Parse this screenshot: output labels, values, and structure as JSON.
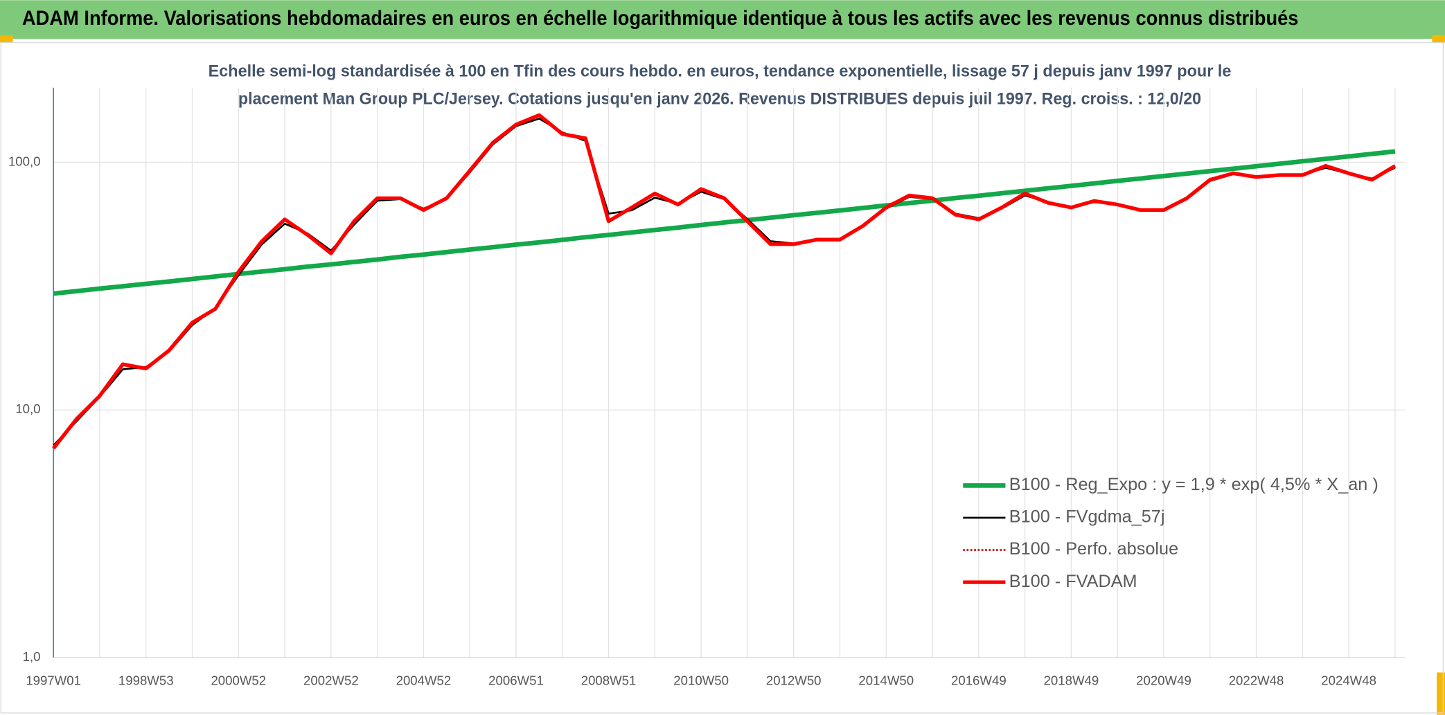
{
  "header": {
    "title": "ADAM Informe. Valorisations hebdomadaires en euros en échelle logarithmique identique à tous les actifs avec les revenus connus distribués"
  },
  "chart_data": {
    "type": "line",
    "title_lines": [
      "Echelle semi-log standardisée à 100 en Tfin des cours hebdo. en euros, tendance exponentielle, lissage 57 j depuis janv 1997 pour le",
      "placement Man Group PLC/Jersey. Cotations jusqu'en janv 2026. Revenus DISTRIBUES depuis juil 1997. Reg. croiss. : 12,0/20"
    ],
    "categories": [
      "1997W01",
      null,
      null,
      null,
      "1998W53",
      null,
      null,
      null,
      "2000W52",
      null,
      null,
      null,
      "2002W52",
      null,
      null,
      null,
      "2004W52",
      null,
      null,
      null,
      "2006W51",
      null,
      null,
      null,
      "2008W51",
      null,
      null,
      null,
      "2010W50",
      null,
      null,
      null,
      "2012W50",
      null,
      null,
      null,
      "2014W50",
      null,
      null,
      null,
      "2016W49",
      null,
      null,
      null,
      "2018W49",
      null,
      null,
      null,
      "2020W49",
      null,
      null,
      null,
      "2022W48",
      null,
      null,
      null,
      "2024W48",
      null,
      null
    ],
    "ylim": [
      1,
      200
    ],
    "log_scale": true,
    "yticks": [
      {
        "value": 1,
        "label": "1,0"
      },
      {
        "value": 10,
        "label": "10,0"
      },
      {
        "value": 100,
        "label": "100,0"
      }
    ],
    "grid": true,
    "legend": "lower right",
    "series": [
      {
        "name": "B100 - Reg_Expo : y = 1,9 * exp( 4,5% *  X_an )",
        "color": "#13a84a",
        "style": "solid",
        "width": 5,
        "values": [
          29.5,
          30.2,
          30.9,
          31.6,
          32.3,
          33.0,
          33.8,
          34.6,
          35.4,
          36.2,
          37.0,
          37.9,
          38.7,
          39.6,
          40.5,
          41.5,
          42.4,
          43.4,
          44.4,
          45.4,
          46.5,
          47.5,
          48.6,
          49.8,
          50.9,
          52.1,
          53.3,
          54.5,
          55.8,
          57.1,
          58.4,
          59.7,
          61.1,
          62.5,
          63.9,
          65.4,
          66.9,
          68.5,
          70.0,
          71.7,
          73.3,
          75.0,
          76.7,
          78.5,
          80.3,
          82.2,
          84.1,
          86.0,
          88.0,
          90.0,
          92.1,
          94.2,
          96.4,
          98.6,
          100.9,
          103.2,
          105.6,
          108.1,
          110.6
        ]
      },
      {
        "name": "B100 - FVgdma_57j",
        "color": "#000000",
        "style": "solid",
        "width": 2,
        "values": [
          7.2,
          9.0,
          11.3,
          14.6,
          14.9,
          17.2,
          22.0,
          25.8,
          35.0,
          46.5,
          56.5,
          51.5,
          44.0,
          56.0,
          70.0,
          71.0,
          65.0,
          71.0,
          91.0,
          118,
          140,
          150,
          132,
          122,
          62.0,
          64.0,
          72.0,
          68.0,
          76.0,
          71.0,
          59.0,
          48.0,
          47.0,
          48.5,
          49.0,
          55.0,
          65.0,
          72.5,
          71.0,
          62.0,
          59.5,
          65.0,
          73.5,
          69.0,
          66.0,
          69.0,
          67.5,
          64.5,
          64.5,
          71.0,
          84.0,
          89.5,
          87.5,
          88.5,
          89.0,
          95.0,
          90.0,
          86.0,
          95.0
        ]
      },
      {
        "name": "B100 - Perfo. absolue",
        "color": "#c00000",
        "style": "dotted",
        "width": 2,
        "values": [
          7.0,
          9.2,
          11.4,
          15.3,
          14.7,
          17.4,
          22.5,
          25.6,
          36.1,
          47.9,
          58.8,
          50.8,
          42.9,
          57.8,
          71.6,
          71.6,
          64.1,
          71.6,
          92.6,
          120,
          142,
          155,
          130,
          125,
          57.8,
          65.7,
          74.8,
          67.5,
          78.0,
          71.6,
          57.8,
          46.7,
          46.7,
          48.7,
          48.7,
          55.4,
          65.7,
          73.5,
          71.6,
          61.4,
          58.8,
          65.7,
          74.8,
          68.6,
          65.7,
          69.8,
          67.5,
          64.1,
          64.1,
          71.6,
          85.0,
          90.2,
          87.2,
          88.8,
          88.8,
          96.7,
          90.2,
          85.0,
          96.7
        ]
      },
      {
        "name": "B100 - FVADAM",
        "color": "#ff0000",
        "style": "solid",
        "width": 4,
        "values": [
          7.0,
          9.2,
          11.4,
          15.3,
          14.7,
          17.4,
          22.5,
          25.6,
          36.1,
          47.9,
          58.8,
          50.8,
          42.9,
          57.8,
          71.6,
          71.6,
          64.1,
          71.6,
          92.6,
          120,
          142,
          155,
          130,
          125,
          57.8,
          65.7,
          74.8,
          67.5,
          78.0,
          71.6,
          57.8,
          46.7,
          46.7,
          48.7,
          48.7,
          55.4,
          65.7,
          73.5,
          71.6,
          61.4,
          58.8,
          65.7,
          74.8,
          68.6,
          65.7,
          69.8,
          67.5,
          64.1,
          64.1,
          71.6,
          85.0,
          90.2,
          87.2,
          88.8,
          88.8,
          96.7,
          90.2,
          85.0,
          96.7
        ]
      }
    ]
  }
}
